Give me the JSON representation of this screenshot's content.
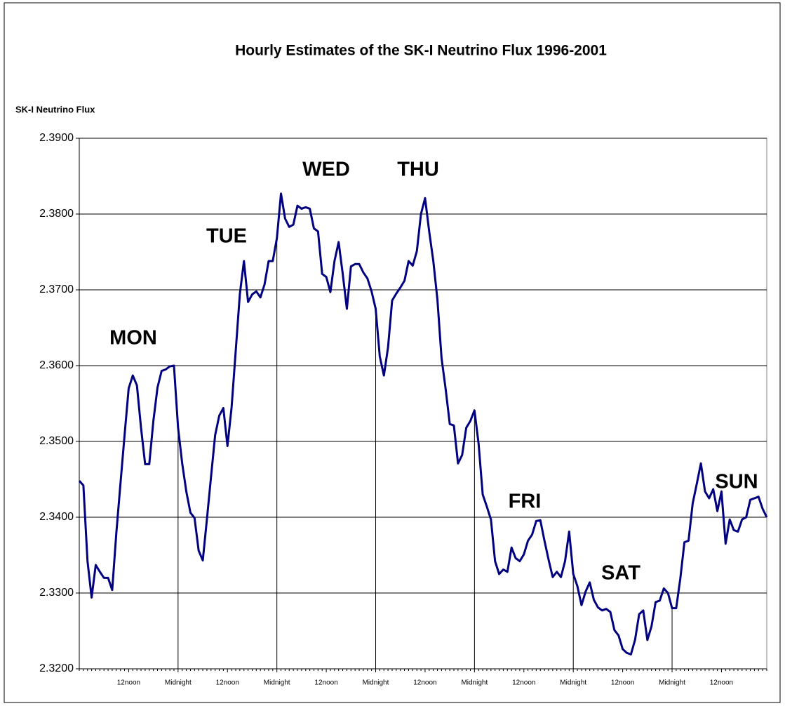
{
  "chart_data": {
    "type": "line",
    "title": "Hourly Estimates of the SK-I Neutrino Flux  1996-2001",
    "y_label": "SK-I Neutrino Flux",
    "annotations": [
      "MON",
      "TUE",
      "WED",
      "THU",
      "FRI",
      "SAT",
      "SUN"
    ],
    "categories": [
      null,
      null,
      null,
      null,
      null,
      null,
      null,
      null,
      null,
      null,
      null,
      null,
      "12noon",
      null,
      null,
      null,
      null,
      null,
      null,
      null,
      null,
      null,
      null,
      null,
      "Midnight",
      null,
      null,
      null,
      null,
      null,
      null,
      null,
      null,
      null,
      null,
      null,
      "12noon",
      null,
      null,
      null,
      null,
      null,
      null,
      null,
      null,
      null,
      null,
      null,
      "Midnight",
      null,
      null,
      null,
      null,
      null,
      null,
      null,
      null,
      null,
      null,
      null,
      "12noon",
      null,
      null,
      null,
      null,
      null,
      null,
      null,
      null,
      null,
      null,
      null,
      "Midnight",
      null,
      null,
      null,
      null,
      null,
      null,
      null,
      null,
      null,
      null,
      null,
      "12noon",
      null,
      null,
      null,
      null,
      null,
      null,
      null,
      null,
      null,
      null,
      null,
      "Midnight",
      null,
      null,
      null,
      null,
      null,
      null,
      null,
      null,
      null,
      null,
      null,
      "12noon",
      null,
      null,
      null,
      null,
      null,
      null,
      null,
      null,
      null,
      null,
      null,
      "Midnight",
      null,
      null,
      null,
      null,
      null,
      null,
      null,
      null,
      null,
      null,
      null,
      "12noon",
      null,
      null,
      null,
      null,
      null,
      null,
      null,
      null,
      null,
      null,
      null,
      "Midnight",
      null,
      null,
      null,
      null,
      null,
      null,
      null,
      null,
      null,
      null,
      null,
      "12noon",
      null,
      null,
      null,
      null,
      null,
      null,
      null,
      null,
      null,
      null,
      null
    ],
    "series": [
      {
        "name": "SK-I Neutrino Flux",
        "color": "#000080",
        "values": [
          2.3448,
          2.3442,
          2.3342,
          2.3294,
          2.3337,
          2.3328,
          2.332,
          2.332,
          2.3304,
          2.3379,
          2.3444,
          2.3508,
          2.357,
          2.3587,
          2.3574,
          2.3518,
          2.347,
          2.347,
          2.3527,
          2.3571,
          2.3593,
          2.3595,
          2.3599,
          2.36,
          2.3518,
          2.3471,
          2.3434,
          2.3406,
          2.3399,
          2.3356,
          2.3343,
          2.3397,
          2.3453,
          2.3508,
          2.3534,
          2.3544,
          2.3494,
          2.3545,
          2.3619,
          2.3694,
          2.3738,
          2.3684,
          2.3694,
          2.3698,
          2.369,
          2.3707,
          2.3738,
          2.3738,
          2.3768,
          2.3827,
          2.3794,
          2.3783,
          2.3786,
          2.3811,
          2.3807,
          2.3809,
          2.3807,
          2.3781,
          2.3777,
          2.3721,
          2.3717,
          2.3697,
          2.3738,
          2.3763,
          2.3721,
          2.3675,
          2.3731,
          2.3734,
          2.3734,
          2.3723,
          2.3715,
          2.3698,
          2.3675,
          2.3612,
          2.3587,
          2.3624,
          2.3686,
          2.3695,
          2.3703,
          2.3712,
          2.3738,
          2.3732,
          2.3751,
          2.38,
          2.3821,
          2.3777,
          2.3738,
          2.3687,
          2.361,
          2.3569,
          2.3523,
          2.3521,
          2.3471,
          2.3482,
          2.3518,
          2.3527,
          2.3541,
          2.3497,
          2.343,
          2.3414,
          2.3397,
          2.3342,
          2.3325,
          2.3331,
          2.3328,
          2.336,
          2.3346,
          2.3342,
          2.3351,
          2.3369,
          2.3377,
          2.3395,
          2.3396,
          2.3369,
          2.3344,
          2.3321,
          2.3328,
          2.3321,
          2.3342,
          2.3381,
          2.3325,
          2.3309,
          2.3284,
          2.3302,
          2.3314,
          2.3291,
          2.3281,
          2.3277,
          2.3279,
          2.3275,
          2.3251,
          2.3244,
          2.3226,
          2.3221,
          2.3219,
          2.3238,
          2.3272,
          2.3277,
          2.3238,
          2.3256,
          2.3288,
          2.329,
          2.3306,
          2.33,
          2.328,
          2.328,
          2.3319,
          2.3367,
          2.3369,
          2.3418,
          2.3444,
          2.3471,
          2.3434,
          2.3425,
          2.3437,
          2.3408,
          2.3434,
          2.3365,
          2.3397,
          2.3383,
          2.3381,
          2.3397,
          2.34,
          2.3423,
          2.3425,
          2.3427,
          2.3411,
          2.34
        ]
      }
    ],
    "ylim": [
      2.32,
      2.39
    ],
    "yticks": [
      {
        "value": 2.32,
        "label": "2.3200"
      },
      {
        "value": 2.33,
        "label": "2.3300"
      },
      {
        "value": 2.34,
        "label": "2.3400"
      },
      {
        "value": 2.35,
        "label": "2.3500"
      },
      {
        "value": 2.36,
        "label": "2.3600"
      },
      {
        "value": 2.37,
        "label": "2.3700"
      },
      {
        "value": 2.38,
        "label": "2.3800"
      },
      {
        "value": 2.39,
        "label": "2.3900"
      }
    ],
    "grid": true
  }
}
